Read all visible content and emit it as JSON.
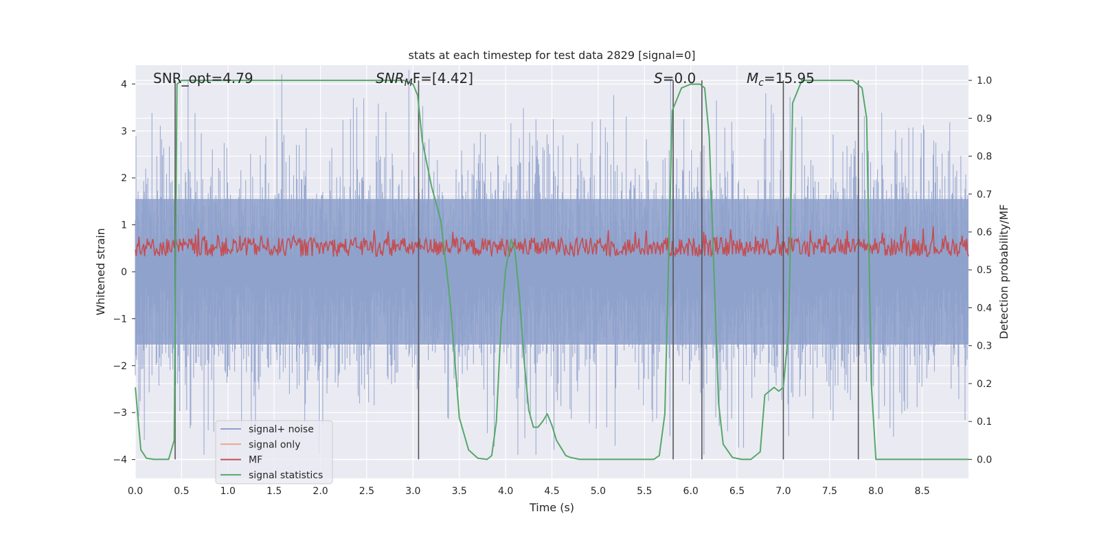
{
  "chart_data": {
    "type": "line",
    "title": "stats at each timestep for test data 2829 [signal=0]",
    "xlabel": "Time (s)",
    "ylabel_left": "Whitened strain",
    "ylabel_right": "Detection probability/MF",
    "xlim": [
      0.0,
      9.0
    ],
    "ylim_left": [
      -4.4,
      4.4
    ],
    "ylim_right": [
      -0.05,
      1.04
    ],
    "x_ticks": [
      "0.0",
      "0.5",
      "1.0",
      "1.5",
      "2.0",
      "2.5",
      "3.0",
      "3.5",
      "4.0",
      "4.5",
      "5.0",
      "5.5",
      "6.0",
      "6.5",
      "7.0",
      "7.5",
      "8.0",
      "8.5"
    ],
    "y_ticks_left": [
      "−4",
      "−3",
      "−2",
      "−1",
      "0",
      "1",
      "2",
      "3",
      "4"
    ],
    "y_ticks_right": [
      "0.0",
      "0.1",
      "0.2",
      "0.3",
      "0.4",
      "0.5",
      "0.6",
      "0.7",
      "0.8",
      "0.9",
      "1.0"
    ],
    "grid": true,
    "legend_placement": "lower-left",
    "annotations": {
      "snr_opt": "SNR_opt=4.79",
      "snr_mf_italic": "SNR",
      "snr_mf_sub": "M",
      "snr_mf_rest": "F=[4.42]",
      "s_italic": "S",
      "s_rest": "=0.0",
      "mc_italic": "M",
      "mc_sub": "c",
      "mc_rest": "=15.95"
    },
    "vertical_lines_x": [
      0.43,
      3.06,
      5.81,
      6.12,
      7.0,
      7.81
    ],
    "series": [
      {
        "name": "signal+ noise",
        "color": "#8da0cb",
        "axis": "left",
        "description_values": "noise band approx between -3.8 and 4.2, core between -1.6 and 1.6"
      },
      {
        "name": "signal only",
        "color": "#e8a58b",
        "axis": "left",
        "values": []
      },
      {
        "name": "MF",
        "color": "#c44e52",
        "axis": "right",
        "range": [
          0.5,
          0.62
        ]
      },
      {
        "name": "signal statistics",
        "color": "#55a868",
        "axis": "right",
        "x": [
          0.0,
          0.06,
          0.12,
          0.2,
          0.3,
          0.36,
          0.42,
          0.45,
          0.5,
          0.6,
          1.0,
          2.0,
          2.9,
          3.0,
          3.05,
          3.1,
          3.2,
          3.3,
          3.4,
          3.5,
          3.6,
          3.7,
          3.8,
          3.85,
          3.9,
          3.95,
          4.0,
          4.06,
          4.1,
          4.15,
          4.2,
          4.25,
          4.3,
          4.35,
          4.4,
          4.45,
          4.5,
          4.55,
          4.6,
          4.65,
          4.7,
          4.8,
          5.0,
          5.4,
          5.6,
          5.66,
          5.72,
          5.8,
          5.9,
          6.0,
          6.1,
          6.15,
          6.2,
          6.25,
          6.3,
          6.35,
          6.45,
          6.55,
          6.65,
          6.75,
          6.8,
          6.9,
          6.95,
          7.0,
          7.06,
          7.1,
          7.2,
          7.5,
          7.75,
          7.8,
          7.85,
          7.9,
          7.95,
          8.0,
          8.5,
          9.0
        ],
        "values": [
          0.19,
          0.025,
          0.003,
          0.0,
          0.0,
          0.0,
          0.05,
          0.99,
          1.0,
          1.0,
          1.0,
          1.0,
          1.0,
          0.99,
          0.96,
          0.84,
          0.72,
          0.63,
          0.42,
          0.11,
          0.025,
          0.003,
          0.0,
          0.01,
          0.1,
          0.35,
          0.5,
          0.58,
          0.55,
          0.43,
          0.26,
          0.13,
          0.085,
          0.085,
          0.1,
          0.12,
          0.09,
          0.05,
          0.03,
          0.01,
          0.005,
          0.0,
          0.0,
          0.0,
          0.0,
          0.01,
          0.12,
          0.92,
          0.98,
          0.99,
          0.99,
          0.98,
          0.85,
          0.5,
          0.15,
          0.04,
          0.005,
          0.0,
          0.0,
          0.02,
          0.17,
          0.19,
          0.18,
          0.19,
          0.35,
          0.94,
          1.0,
          1.0,
          1.0,
          0.99,
          0.98,
          0.9,
          0.2,
          0.0,
          0.0,
          0.0
        ]
      }
    ]
  }
}
